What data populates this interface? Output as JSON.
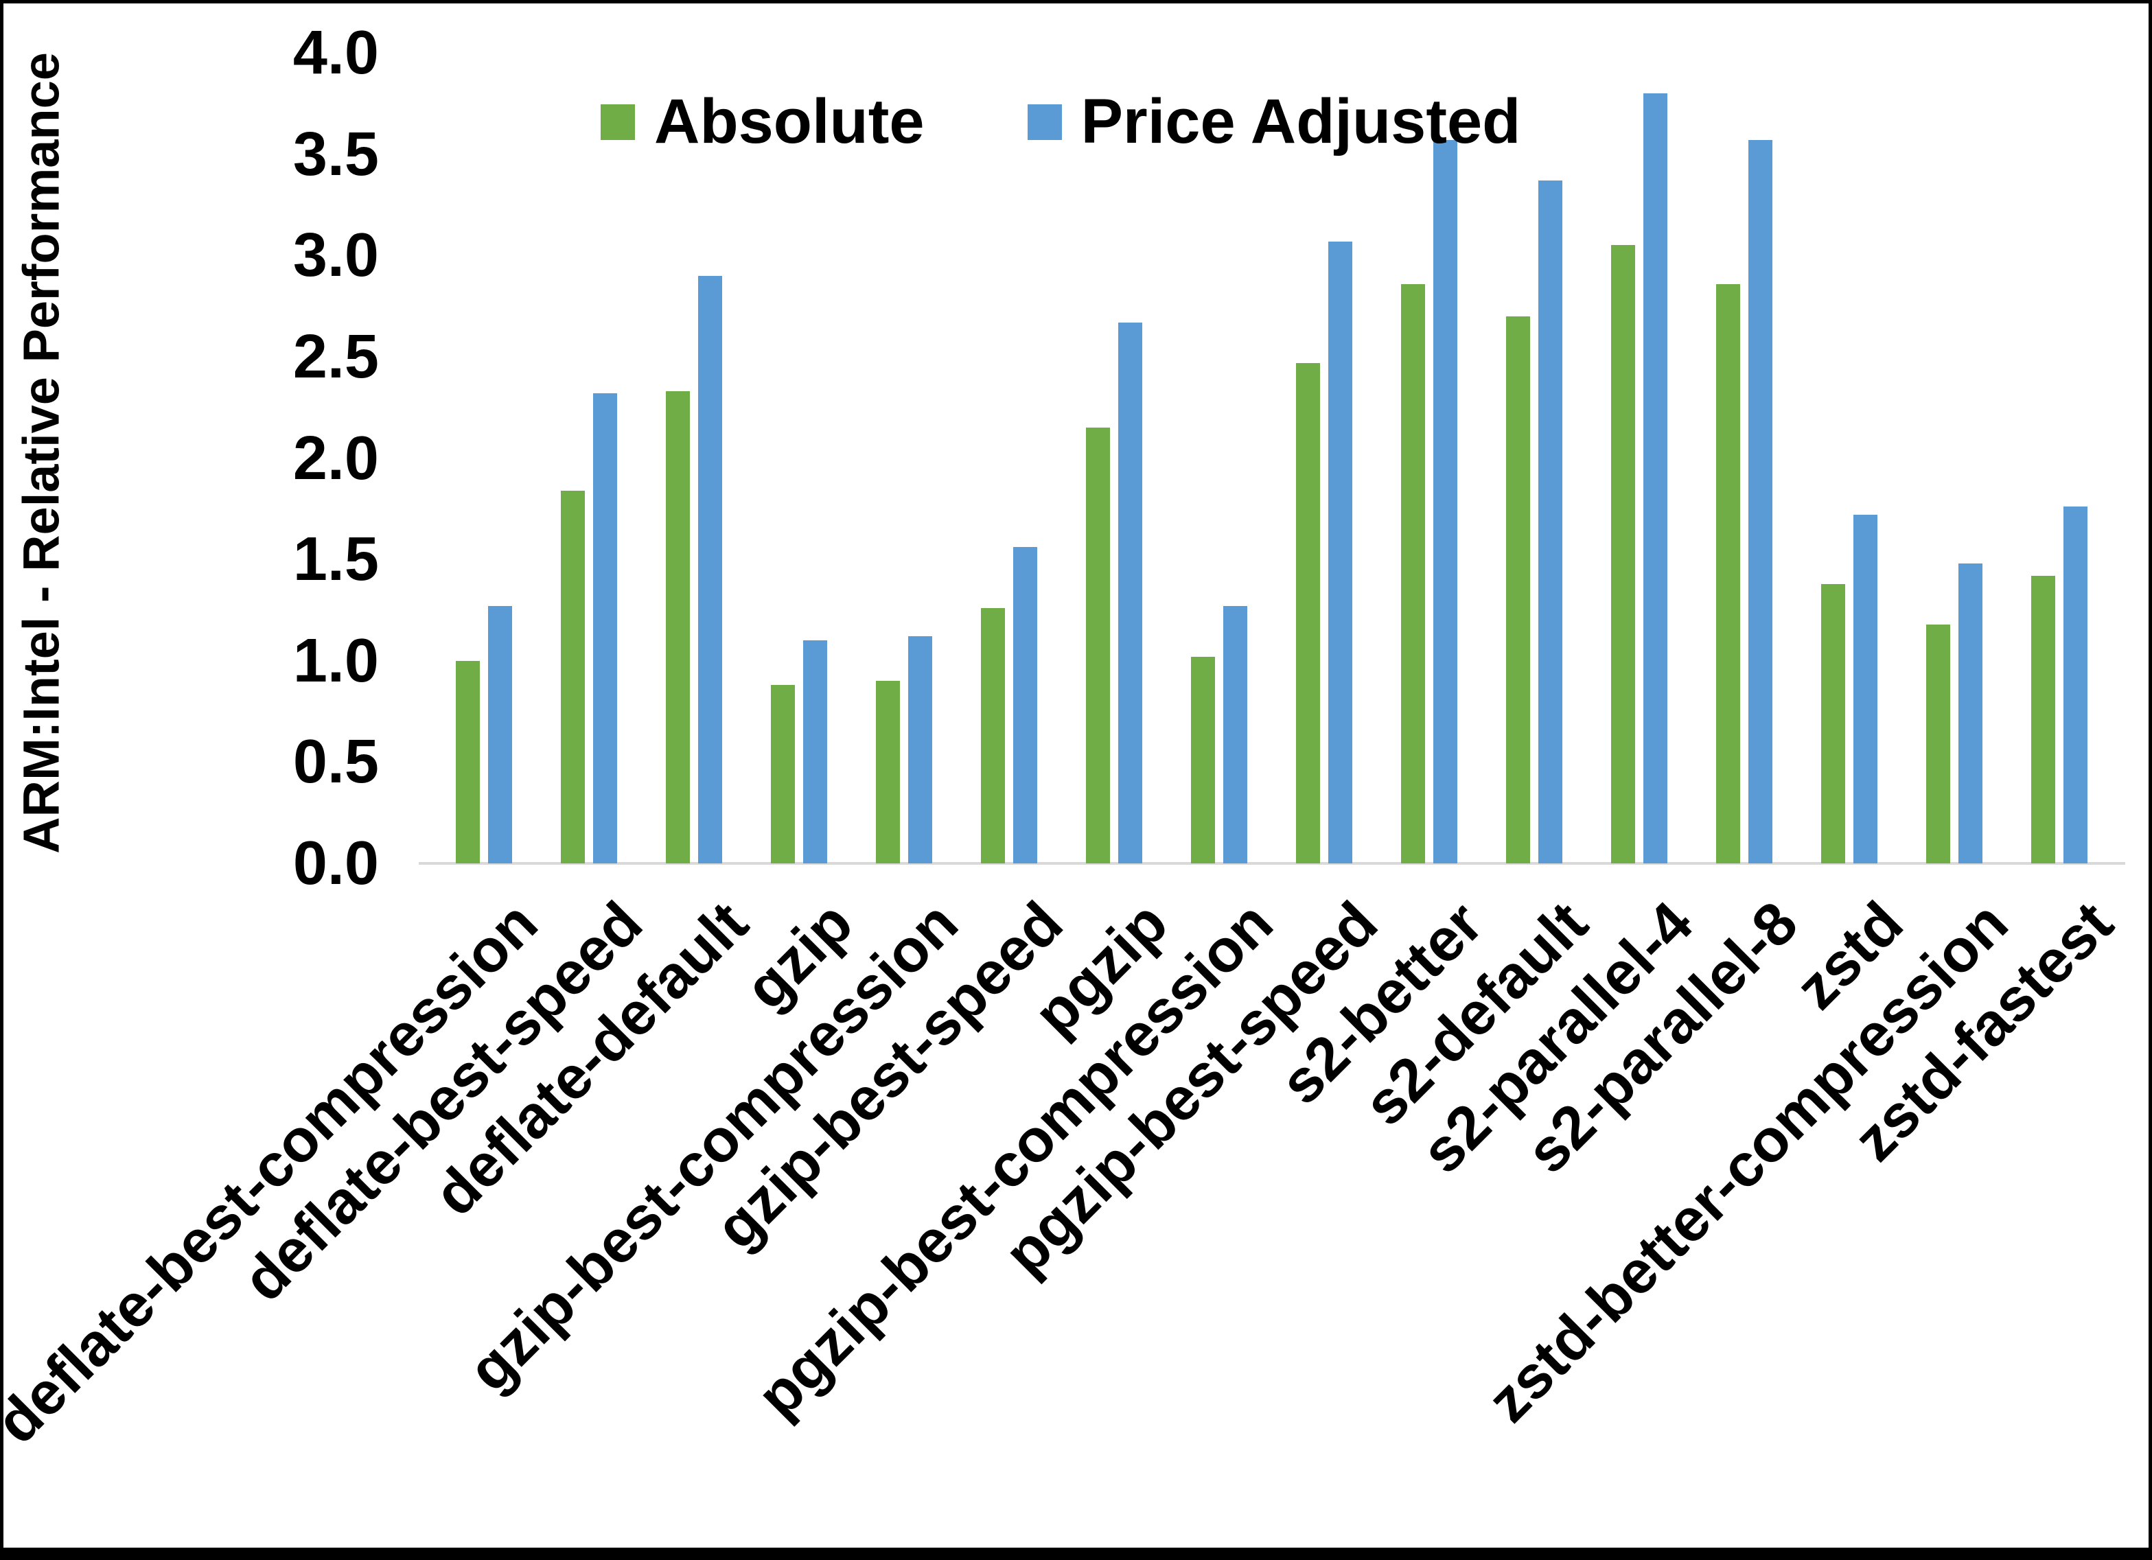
{
  "chart_data": {
    "type": "bar",
    "title": "",
    "ylabel": "ARM:Intel - Relative Performance",
    "xlabel": "",
    "ylim": [
      0.0,
      4.0
    ],
    "ytick_step": 0.5,
    "ytick_labels": [
      "0.0",
      "0.5",
      "1.0",
      "1.5",
      "2.0",
      "2.5",
      "3.0",
      "3.5",
      "4.0"
    ],
    "grid": false,
    "legend_position": "top-center",
    "categories": [
      "deflate-best-compression",
      "deflate-best-speed",
      "deflate-default",
      "gzip",
      "gzip-best-compression",
      "gzip-best-speed",
      "pgzip",
      "pgzip-best-compression",
      "pgzip-best-speed",
      "s2-better",
      "s2-default",
      "s2-parallel-4",
      "s2-parallel-8",
      "zstd",
      "zstd-better-compression",
      "zstd-fastest"
    ],
    "series": [
      {
        "name": "Absolute",
        "color": "#70AD47",
        "values": [
          1.0,
          1.84,
          2.33,
          0.88,
          0.9,
          1.26,
          2.15,
          1.02,
          2.47,
          2.86,
          2.7,
          3.05,
          2.86,
          1.38,
          1.18,
          1.42
        ]
      },
      {
        "name": "Price Adjusted",
        "color": "#5B9BD5",
        "values": [
          1.27,
          2.32,
          2.9,
          1.1,
          1.12,
          1.56,
          2.67,
          1.27,
          3.07,
          3.57,
          3.37,
          3.8,
          3.57,
          1.72,
          1.48,
          1.76
        ]
      }
    ]
  },
  "colors": {
    "absolute": "#70AD47",
    "price_adjusted": "#5B9BD5",
    "axis_line": "#D9D9D9",
    "text": "#000000",
    "background": "#FFFFFF",
    "frame": "#000000"
  }
}
